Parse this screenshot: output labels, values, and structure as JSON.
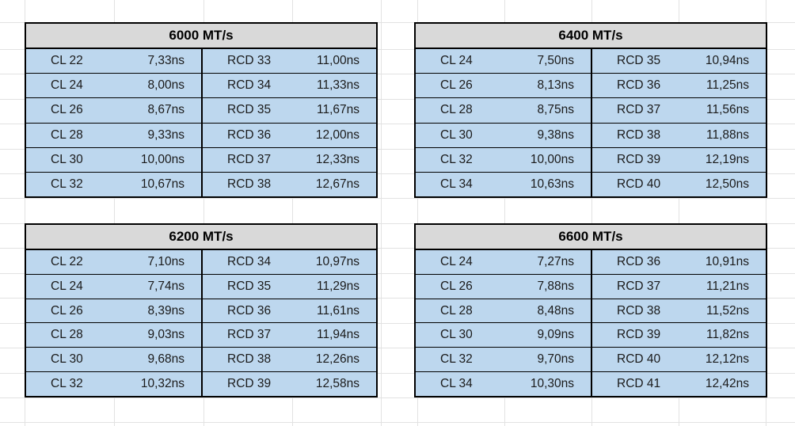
{
  "colors": {
    "header_fill": "#d9d9d9",
    "cell_fill": "#bdd7ee",
    "table_border": "#000000",
    "gridline": "#e2e2e2",
    "text": "#1a1a1a"
  },
  "tables": [
    {
      "title": "6000 MT/s",
      "position": "top-left",
      "rows": [
        {
          "cl": "CL 22",
          "cl_time": "7,33ns",
          "rcd": "RCD 33",
          "rcd_time": "11,00ns"
        },
        {
          "cl": "CL 24",
          "cl_time": "8,00ns",
          "rcd": "RCD 34",
          "rcd_time": "11,33ns"
        },
        {
          "cl": "CL 26",
          "cl_time": "8,67ns",
          "rcd": "RCD 35",
          "rcd_time": "11,67ns"
        },
        {
          "cl": "CL 28",
          "cl_time": "9,33ns",
          "rcd": "RCD 36",
          "rcd_time": "12,00ns"
        },
        {
          "cl": "CL 30",
          "cl_time": "10,00ns",
          "rcd": "RCD 37",
          "rcd_time": "12,33ns"
        },
        {
          "cl": "CL 32",
          "cl_time": "10,67ns",
          "rcd": "RCD 38",
          "rcd_time": "12,67ns"
        }
      ]
    },
    {
      "title": "6400 MT/s",
      "position": "top-right",
      "rows": [
        {
          "cl": "CL 24",
          "cl_time": "7,50ns",
          "rcd": "RCD 35",
          "rcd_time": "10,94ns"
        },
        {
          "cl": "CL 26",
          "cl_time": "8,13ns",
          "rcd": "RCD 36",
          "rcd_time": "11,25ns"
        },
        {
          "cl": "CL 28",
          "cl_time": "8,75ns",
          "rcd": "RCD 37",
          "rcd_time": "11,56ns"
        },
        {
          "cl": "CL 30",
          "cl_time": "9,38ns",
          "rcd": "RCD 38",
          "rcd_time": "11,88ns"
        },
        {
          "cl": "CL 32",
          "cl_time": "10,00ns",
          "rcd": "RCD 39",
          "rcd_time": "12,19ns"
        },
        {
          "cl": "CL 34",
          "cl_time": "10,63ns",
          "rcd": "RCD 40",
          "rcd_time": "12,50ns"
        }
      ]
    },
    {
      "title": "6200 MT/s",
      "position": "bottom-left",
      "rows": [
        {
          "cl": "CL 22",
          "cl_time": "7,10ns",
          "rcd": "RCD 34",
          "rcd_time": "10,97ns"
        },
        {
          "cl": "CL 24",
          "cl_time": "7,74ns",
          "rcd": "RCD 35",
          "rcd_time": "11,29ns"
        },
        {
          "cl": "CL 26",
          "cl_time": "8,39ns",
          "rcd": "RCD 36",
          "rcd_time": "11,61ns"
        },
        {
          "cl": "CL 28",
          "cl_time": "9,03ns",
          "rcd": "RCD 37",
          "rcd_time": "11,94ns"
        },
        {
          "cl": "CL 30",
          "cl_time": "9,68ns",
          "rcd": "RCD 38",
          "rcd_time": "12,26ns"
        },
        {
          "cl": "CL 32",
          "cl_time": "10,32ns",
          "rcd": "RCD 39",
          "rcd_time": "12,58ns"
        }
      ]
    },
    {
      "title": "6600 MT/s",
      "position": "bottom-right",
      "rows": [
        {
          "cl": "CL 24",
          "cl_time": "7,27ns",
          "rcd": "RCD 36",
          "rcd_time": "10,91ns"
        },
        {
          "cl": "CL 26",
          "cl_time": "7,88ns",
          "rcd": "RCD 37",
          "rcd_time": "11,21ns"
        },
        {
          "cl": "CL 28",
          "cl_time": "8,48ns",
          "rcd": "RCD 38",
          "rcd_time": "11,52ns"
        },
        {
          "cl": "CL 30",
          "cl_time": "9,09ns",
          "rcd": "RCD 39",
          "rcd_time": "11,82ns"
        },
        {
          "cl": "CL 32",
          "cl_time": "9,70ns",
          "rcd": "RCD 40",
          "rcd_time": "12,12ns"
        },
        {
          "cl": "CL 34",
          "cl_time": "10,30ns",
          "rcd": "RCD 41",
          "rcd_time": "12,42ns"
        }
      ]
    }
  ]
}
